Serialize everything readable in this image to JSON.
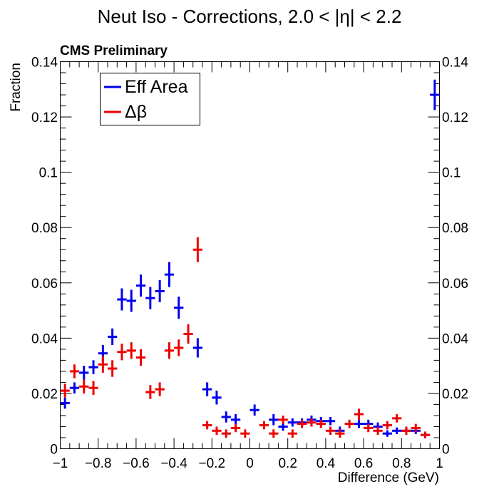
{
  "chart_data": {
    "type": "scatter",
    "title": "Neut Iso - Corrections, 2.0 < |η| < 2.2",
    "label": "CMS Preliminary",
    "xlabel": "Difference (GeV)",
    "ylabel": "Fraction",
    "xlim": [
      -1,
      1
    ],
    "ylim": [
      0,
      0.14
    ],
    "x_ticks": [
      -1,
      -0.8,
      -0.6,
      -0.4,
      -0.2,
      0,
      0.2,
      0.4,
      0.6,
      0.8,
      1
    ],
    "x_tick_labels": [
      "−1",
      "−0.8",
      "−0.6",
      "−0.4",
      "−0.2",
      "0",
      "0.2",
      "0.4",
      "0.6",
      "0.8",
      "1"
    ],
    "y_ticks": [
      0,
      0.02,
      0.04,
      0.06,
      0.08,
      0.1,
      0.12,
      0.14
    ],
    "y_tick_labels": [
      "0",
      "0.02",
      "0.04",
      "0.06",
      "0.08",
      "0.1",
      "0.12",
      "0.14"
    ],
    "bin_width": 0.05,
    "legend_position": "top-left",
    "series": [
      {
        "name": "Eff Area",
        "color": "#0000ee",
        "points": [
          {
            "x": -0.975,
            "y": 0.0165,
            "err": 0.002
          },
          {
            "x": -0.925,
            "y": 0.022,
            "err": 0.002
          },
          {
            "x": -0.875,
            "y": 0.0275,
            "err": 0.0025
          },
          {
            "x": -0.825,
            "y": 0.0295,
            "err": 0.0025
          },
          {
            "x": -0.775,
            "y": 0.0345,
            "err": 0.003
          },
          {
            "x": -0.725,
            "y": 0.0405,
            "err": 0.003
          },
          {
            "x": -0.675,
            "y": 0.054,
            "err": 0.004
          },
          {
            "x": -0.625,
            "y": 0.0535,
            "err": 0.004
          },
          {
            "x": -0.575,
            "y": 0.059,
            "err": 0.004
          },
          {
            "x": -0.525,
            "y": 0.0545,
            "err": 0.004
          },
          {
            "x": -0.475,
            "y": 0.057,
            "err": 0.004
          },
          {
            "x": -0.425,
            "y": 0.063,
            "err": 0.0045
          },
          {
            "x": -0.375,
            "y": 0.051,
            "err": 0.004
          },
          {
            "x": -0.275,
            "y": 0.0365,
            "err": 0.0035
          },
          {
            "x": -0.225,
            "y": 0.0215,
            "err": 0.0025
          },
          {
            "x": -0.175,
            "y": 0.0185,
            "err": 0.0025
          },
          {
            "x": -0.125,
            "y": 0.0115,
            "err": 0.002
          },
          {
            "x": -0.075,
            "y": 0.0105,
            "err": 0.002
          },
          {
            "x": 0.025,
            "y": 0.014,
            "err": 0.002
          },
          {
            "x": 0.125,
            "y": 0.0105,
            "err": 0.002
          },
          {
            "x": 0.175,
            "y": 0.008,
            "err": 0.0015
          },
          {
            "x": 0.225,
            "y": 0.0095,
            "err": 0.0015
          },
          {
            "x": 0.275,
            "y": 0.0095,
            "err": 0.0015
          },
          {
            "x": 0.325,
            "y": 0.0105,
            "err": 0.0015
          },
          {
            "x": 0.375,
            "y": 0.01,
            "err": 0.0015
          },
          {
            "x": 0.425,
            "y": 0.01,
            "err": 0.0015
          },
          {
            "x": 0.475,
            "y": 0.0065,
            "err": 0.0015
          },
          {
            "x": 0.575,
            "y": 0.009,
            "err": 0.0015
          },
          {
            "x": 0.625,
            "y": 0.009,
            "err": 0.0015
          },
          {
            "x": 0.675,
            "y": 0.008,
            "err": 0.0015
          },
          {
            "x": 0.725,
            "y": 0.0055,
            "err": 0.0012
          },
          {
            "x": 0.775,
            "y": 0.0065,
            "err": 0.0012
          },
          {
            "x": 0.825,
            "y": 0.0065,
            "err": 0.0012
          },
          {
            "x": 0.875,
            "y": 0.0065,
            "err": 0.0012
          },
          {
            "x": 0.925,
            "y": 0.005,
            "err": 0.0012
          },
          {
            "x": 0.975,
            "y": 0.128,
            "err": 0.0055
          }
        ]
      },
      {
        "name": "Δβ",
        "color": "#ee0000",
        "points": [
          {
            "x": -0.975,
            "y": 0.021,
            "err": 0.0025
          },
          {
            "x": -0.925,
            "y": 0.028,
            "err": 0.0025
          },
          {
            "x": -0.875,
            "y": 0.0225,
            "err": 0.0025
          },
          {
            "x": -0.825,
            "y": 0.022,
            "err": 0.0025
          },
          {
            "x": -0.775,
            "y": 0.0305,
            "err": 0.003
          },
          {
            "x": -0.725,
            "y": 0.029,
            "err": 0.003
          },
          {
            "x": -0.675,
            "y": 0.035,
            "err": 0.003
          },
          {
            "x": -0.625,
            "y": 0.0355,
            "err": 0.003
          },
          {
            "x": -0.575,
            "y": 0.033,
            "err": 0.003
          },
          {
            "x": -0.525,
            "y": 0.0205,
            "err": 0.0025
          },
          {
            "x": -0.475,
            "y": 0.0215,
            "err": 0.0025
          },
          {
            "x": -0.425,
            "y": 0.0355,
            "err": 0.003
          },
          {
            "x": -0.375,
            "y": 0.0365,
            "err": 0.003
          },
          {
            "x": -0.325,
            "y": 0.0415,
            "err": 0.0035
          },
          {
            "x": -0.275,
            "y": 0.072,
            "err": 0.0045
          },
          {
            "x": -0.225,
            "y": 0.0085,
            "err": 0.0015
          },
          {
            "x": -0.175,
            "y": 0.0065,
            "err": 0.0015
          },
          {
            "x": -0.125,
            "y": 0.0055,
            "err": 0.0015
          },
          {
            "x": -0.075,
            "y": 0.0075,
            "err": 0.0015
          },
          {
            "x": -0.025,
            "y": 0.0055,
            "err": 0.0015
          },
          {
            "x": 0.075,
            "y": 0.0085,
            "err": 0.0015
          },
          {
            "x": 0.125,
            "y": 0.0055,
            "err": 0.0015
          },
          {
            "x": 0.175,
            "y": 0.0105,
            "err": 0.0015
          },
          {
            "x": 0.225,
            "y": 0.0055,
            "err": 0.0015
          },
          {
            "x": 0.275,
            "y": 0.009,
            "err": 0.0015
          },
          {
            "x": 0.325,
            "y": 0.0095,
            "err": 0.0015
          },
          {
            "x": 0.375,
            "y": 0.009,
            "err": 0.0015
          },
          {
            "x": 0.425,
            "y": 0.0065,
            "err": 0.0015
          },
          {
            "x": 0.475,
            "y": 0.0055,
            "err": 0.0015
          },
          {
            "x": 0.525,
            "y": 0.009,
            "err": 0.0015
          },
          {
            "x": 0.575,
            "y": 0.0125,
            "err": 0.002
          },
          {
            "x": 0.625,
            "y": 0.0075,
            "err": 0.0015
          },
          {
            "x": 0.675,
            "y": 0.0065,
            "err": 0.0015
          },
          {
            "x": 0.725,
            "y": 0.0085,
            "err": 0.0015
          },
          {
            "x": 0.775,
            "y": 0.011,
            "err": 0.0015
          },
          {
            "x": 0.825,
            "y": 0.0065,
            "err": 0.0015
          },
          {
            "x": 0.875,
            "y": 0.0075,
            "err": 0.0015
          },
          {
            "x": 0.925,
            "y": 0.005,
            "err": 0.0012
          }
        ]
      }
    ]
  }
}
